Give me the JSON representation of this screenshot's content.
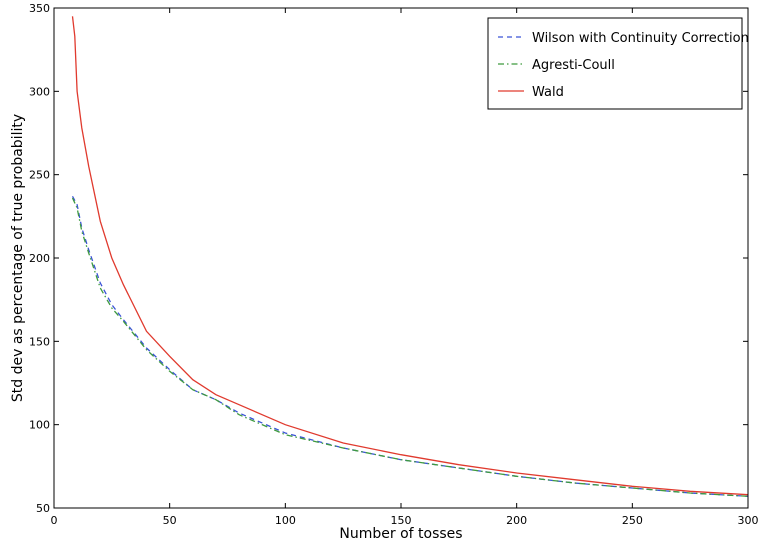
{
  "chart_data": {
    "type": "line",
    "title": "",
    "xlabel": "Number of tosses",
    "ylabel": "Std dev as percentage of true probability",
    "xlim": [
      0,
      300
    ],
    "ylim": [
      50,
      350
    ],
    "xticks": [
      0,
      50,
      100,
      150,
      200,
      250,
      300
    ],
    "yticks": [
      50,
      100,
      150,
      200,
      250,
      300,
      350
    ],
    "xtick_labels": [
      "0",
      "50",
      "100",
      "150",
      "200",
      "250",
      "300"
    ],
    "ytick_labels": [
      "50",
      "100",
      "150",
      "200",
      "250",
      "300",
      "350"
    ],
    "grid": false,
    "legend_position": "top-right",
    "series": [
      {
        "name": "Wilson with Continuity Correction",
        "color": "#3a53d6",
        "style": "dashed",
        "x": [
          8,
          10,
          12,
          15,
          20,
          25,
          30,
          40,
          50,
          60,
          70,
          80,
          100,
          125,
          150,
          175,
          200,
          225,
          250,
          275,
          300
        ],
        "y": [
          237,
          232,
          218,
          205,
          185,
          172,
          163,
          146,
          133,
          121,
          115,
          107,
          95,
          86,
          79,
          74,
          69,
          65,
          62,
          59,
          57
        ]
      },
      {
        "name": "Agresti-Coull",
        "color": "#3f9a3f",
        "style": "dashdot",
        "x": [
          8,
          10,
          12,
          15,
          20,
          25,
          30,
          40,
          50,
          60,
          70,
          80,
          100,
          125,
          150,
          175,
          200,
          225,
          250,
          275,
          300
        ],
        "y": [
          236,
          230,
          216,
          203,
          182,
          170,
          162,
          145,
          132,
          121,
          115,
          106,
          94,
          86,
          79,
          74,
          69,
          65,
          62,
          59,
          57
        ]
      },
      {
        "name": "Wald",
        "color": "#e03a2e",
        "style": "solid",
        "x": [
          8,
          9,
          10,
          12,
          15,
          20,
          25,
          30,
          40,
          50,
          60,
          70,
          80,
          100,
          125,
          150,
          175,
          200,
          225,
          250,
          275,
          300
        ],
        "y": [
          345,
          333,
          300,
          278,
          255,
          222,
          200,
          184,
          156,
          141,
          127,
          118,
          112,
          100,
          89,
          82,
          76,
          71,
          67,
          63,
          60,
          58
        ]
      }
    ]
  }
}
